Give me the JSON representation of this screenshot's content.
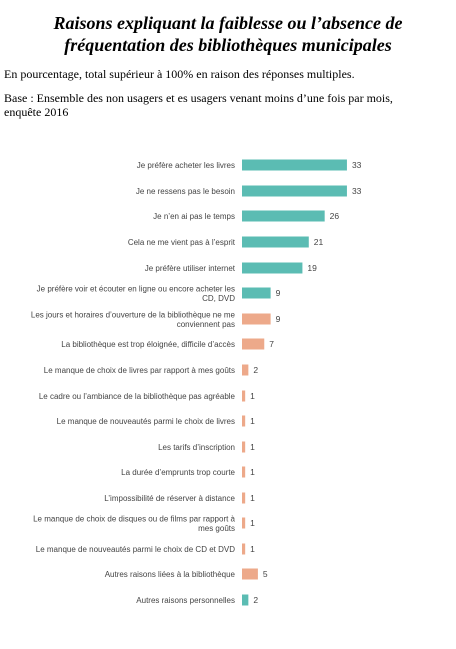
{
  "header": {
    "title_line1": "Raisons expliquant la faiblesse ou l’absence de",
    "title_line2": "fréquentation des bibliothèques municipales",
    "subtitle": "En pourcentage, total supérieur à 100% en raison des réponses multiples.",
    "base": "Base : Ensemble des non usagers et es usagers venant moins d’une fois par mois, enquête 2016"
  },
  "colors": {
    "teal": "#5bbcb3",
    "salmon": "#eda98a"
  },
  "chart_data": {
    "type": "bar",
    "orientation": "horizontal",
    "title": "",
    "xlabel": "",
    "ylabel": "",
    "grid": false,
    "categories": [
      [
        "Je préfère acheter les livres"
      ],
      [
        "Je ne ressens pas le besoin"
      ],
      [
        "Je n’en ai pas le temps"
      ],
      [
        "Cela ne me vient pas à l’esprit"
      ],
      [
        "Je préfère utiliser internet"
      ],
      [
        "Je préfère voir et écouter en ligne ou encore acheter les",
        "CD, DVD"
      ],
      [
        "Les jours et horaires d’ouverture de la bibliothèque ne me",
        "conviennent pas"
      ],
      [
        "La bibliothèque est trop éloignée, difficile d’accès"
      ],
      [
        "Le manque de choix de livres par rapport à mes goûts"
      ],
      [
        "Le cadre ou l’ambiance de la bibliothèque pas agréable"
      ],
      [
        "Le manque de nouveautés parmi le choix de livres"
      ],
      [
        "Les tarifs d’inscription"
      ],
      [
        "La durée d’emprunts trop courte"
      ],
      [
        "L’impossibilité de réserver à distance"
      ],
      [
        "Le manque de choix de disques ou de films par rapport à",
        "mes goûts"
      ],
      [
        "Le manque de nouveautés parmi le choix de CD et DVD"
      ],
      [
        "Autres raisons liées à la bibliothèque"
      ],
      [
        "Autres raisons personnelles"
      ]
    ],
    "values": [
      33,
      33,
      26,
      21,
      19,
      9,
      9,
      7,
      2,
      1,
      1,
      1,
      1,
      1,
      1,
      1,
      5,
      2
    ],
    "bar_colors": [
      "teal",
      "teal",
      "teal",
      "teal",
      "teal",
      "teal",
      "salmon",
      "salmon",
      "salmon",
      "salmon",
      "salmon",
      "salmon",
      "salmon",
      "salmon",
      "salmon",
      "salmon",
      "salmon",
      "teal"
    ]
  }
}
